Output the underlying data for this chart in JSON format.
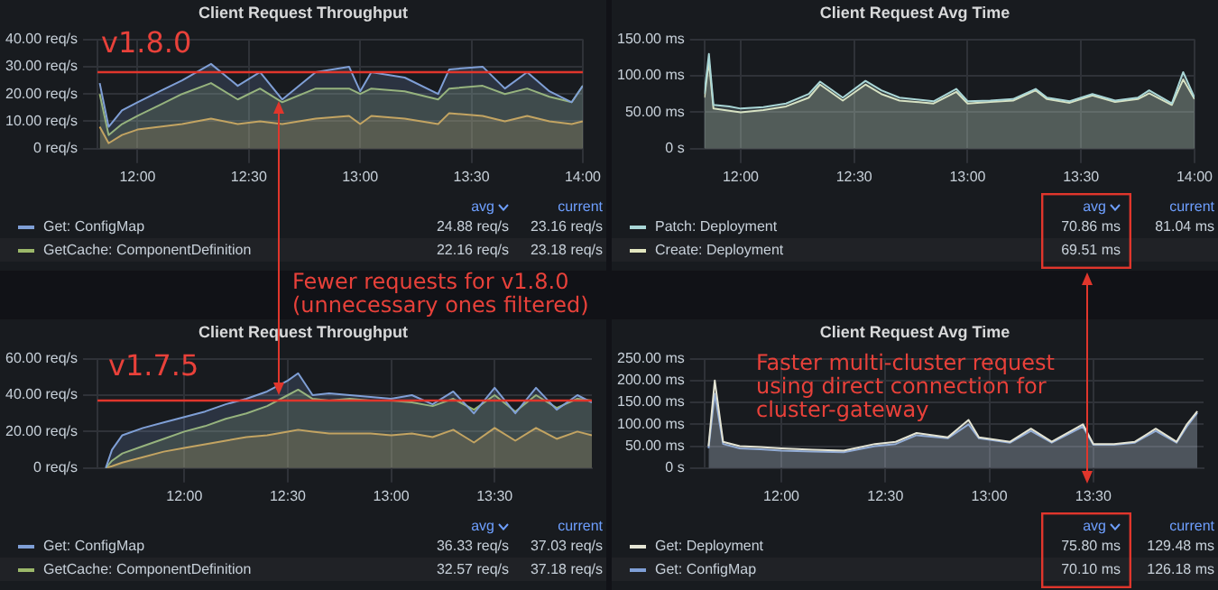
{
  "chart_data": [
    {
      "type": "area",
      "title": "Client Request Throughput",
      "x": [
        11.83,
        11.87,
        11.93,
        12.0,
        12.1,
        12.2,
        12.33,
        12.45,
        12.55,
        12.65,
        12.8,
        12.95,
        13.0,
        13.05,
        13.2,
        13.35,
        13.4,
        13.55,
        13.65,
        13.75,
        13.85,
        13.95,
        14.0
      ],
      "xlim": [
        11.82,
        14.0
      ],
      "xticks": [
        {
          "value": 12,
          "label": "12:00"
        },
        {
          "value": 12.5,
          "label": "12:30"
        },
        {
          "value": 13,
          "label": "13:00"
        },
        {
          "value": 13.5,
          "label": "13:30"
        },
        {
          "value": 14,
          "label": "14:00"
        }
      ],
      "ylim": [
        0,
        40
      ],
      "yticks": [
        {
          "value": 0,
          "label": "0 req/s"
        },
        {
          "value": 10,
          "label": "10.00 req/s"
        },
        {
          "value": 20,
          "label": "20.00 req/s"
        },
        {
          "value": 30,
          "label": "30.00 req/s"
        },
        {
          "value": 40,
          "label": "40.00 req/s"
        }
      ],
      "grid": true,
      "legend": "bottom",
      "series": [
        {
          "name": "Get: ConfigMap",
          "color": "#7f9fd6",
          "values": [
            24,
            8,
            14,
            17,
            21,
            25,
            31,
            23,
            28,
            18,
            28,
            30,
            21,
            28,
            26,
            20,
            29,
            30,
            22,
            28,
            21,
            17,
            23
          ]
        },
        {
          "name": "GetCache: ComponentDefinition",
          "color": "#9cb86a",
          "values": [
            20,
            5,
            9,
            12,
            16,
            20,
            24,
            18,
            22,
            17,
            22,
            22,
            20,
            22,
            21,
            18,
            22,
            23,
            20,
            22,
            19,
            17,
            23
          ]
        },
        {
          "color": "#e0a040",
          "values": [
            8,
            2,
            5,
            7,
            8,
            9,
            11,
            9,
            10,
            9,
            11,
            12,
            9,
            12,
            11,
            9,
            13,
            12,
            10,
            12,
            10,
            9,
            10
          ]
        }
      ],
      "ref_lines": [
        {
          "axis": "y",
          "value": 28,
          "color": "#e0362c"
        }
      ],
      "annotations": [
        "avg",
        "current",
        "24.88 req/s",
        "23.16 req/s",
        "22.16 req/s",
        "23.18 req/s",
        "v1.8.0"
      ]
    },
    {
      "type": "area",
      "title": "Client Request Avg Time",
      "x": [
        11.84,
        11.86,
        11.88,
        11.95,
        12.0,
        12.1,
        12.2,
        12.3,
        12.35,
        12.45,
        12.55,
        12.62,
        12.7,
        12.85,
        12.95,
        13.0,
        13.1,
        13.2,
        13.3,
        13.35,
        13.45,
        13.55,
        13.65,
        13.75,
        13.8,
        13.9,
        13.95,
        14.0
      ],
      "xlim": [
        11.84,
        14.0
      ],
      "xticks": [
        {
          "value": 12,
          "label": "12:00"
        },
        {
          "value": 12.5,
          "label": "12:30"
        },
        {
          "value": 13,
          "label": "13:00"
        },
        {
          "value": 13.5,
          "label": "13:30"
        },
        {
          "value": 14,
          "label": "14:00"
        }
      ],
      "ylim": [
        0,
        150
      ],
      "yticks": [
        {
          "value": 0,
          "label": "0 s"
        },
        {
          "value": 50,
          "label": "50.00 ms"
        },
        {
          "value": 100,
          "label": "100.00 ms"
        },
        {
          "value": 150,
          "label": "150.00 ms"
        }
      ],
      "grid": true,
      "legend": "bottom",
      "series": [
        {
          "name": "Patch: Deployment",
          "color": "#a9d6d6",
          "values": [
            75,
            130,
            60,
            58,
            55,
            57,
            62,
            75,
            92,
            70,
            93,
            80,
            70,
            65,
            82,
            65,
            66,
            68,
            82,
            70,
            65,
            75,
            66,
            70,
            80,
            62,
            105,
            70
          ]
        },
        {
          "name": "Create: Deployment",
          "color": "#e2e6bf",
          "values": [
            70,
            120,
            55,
            52,
            50,
            53,
            58,
            70,
            88,
            66,
            88,
            75,
            66,
            62,
            78,
            62,
            64,
            66,
            80,
            68,
            63,
            73,
            64,
            68,
            76,
            60,
            95,
            68
          ]
        }
      ],
      "annotations": [
        "avg",
        "current",
        "70.86 ms",
        "81.04 ms",
        "69.51 ms"
      ]
    },
    {
      "type": "area",
      "title": "Client Request Throughput",
      "x": [
        11.62,
        11.65,
        11.7,
        11.8,
        11.9,
        12.0,
        12.1,
        12.2,
        12.3,
        12.4,
        12.5,
        12.55,
        12.62,
        12.7,
        12.8,
        12.9,
        13.0,
        13.1,
        13.2,
        13.3,
        13.4,
        13.5,
        13.6,
        13.7,
        13.8,
        13.9,
        13.97
      ],
      "xlim": [
        11.58,
        13.97
      ],
      "xticks": [
        {
          "value": 12,
          "label": "12:00"
        },
        {
          "value": 12.5,
          "label": "12:30"
        },
        {
          "value": 13,
          "label": "13:00"
        },
        {
          "value": 13.5,
          "label": "13:30"
        }
      ],
      "ylim": [
        0,
        60
      ],
      "yticks": [
        {
          "value": 0,
          "label": "0 req/s"
        },
        {
          "value": 20,
          "label": "20.00 req/s"
        },
        {
          "value": 40,
          "label": "40.00 req/s"
        },
        {
          "value": 60,
          "label": "60.00 req/s"
        }
      ],
      "grid": true,
      "legend": "bottom",
      "series": [
        {
          "name": "Get: ConfigMap",
          "color": "#7f9fd6",
          "values": [
            0,
            10,
            18,
            22,
            25,
            28,
            31,
            35,
            38,
            42,
            48,
            52,
            40,
            41,
            40,
            39,
            38,
            40,
            35,
            42,
            30,
            44,
            30,
            44,
            32,
            40,
            36
          ]
        },
        {
          "name": "GetCache: ComponentDefinition",
          "color": "#9cb86a",
          "values": [
            0,
            4,
            8,
            12,
            16,
            20,
            23,
            27,
            30,
            34,
            40,
            43,
            38,
            37,
            38,
            37,
            37,
            36,
            34,
            38,
            32,
            40,
            31,
            40,
            33,
            38,
            37
          ]
        },
        {
          "color": "#e0a040",
          "values": [
            0,
            1,
            3,
            6,
            9,
            11,
            13,
            15,
            17,
            18,
            20,
            21,
            20,
            19,
            19,
            19,
            18,
            19,
            17,
            21,
            14,
            22,
            15,
            22,
            16,
            20,
            18
          ]
        }
      ],
      "ref_lines": [
        {
          "axis": "y",
          "value": 37,
          "color": "#e0362c"
        }
      ],
      "annotations": [
        "avg",
        "current",
        "36.33 req/s",
        "37.03 req/s",
        "32.57 req/s",
        "37.18 req/s",
        "v1.7.5",
        "Fewer requests for v1.8.0 (unnecessary ones filtered)"
      ]
    },
    {
      "type": "area",
      "title": "Client Request Avg Time",
      "x": [
        11.65,
        11.68,
        11.72,
        11.8,
        11.9,
        12.0,
        12.15,
        12.3,
        12.45,
        12.55,
        12.65,
        12.8,
        12.9,
        12.95,
        13.1,
        13.2,
        13.3,
        13.45,
        13.5,
        13.6,
        13.7,
        13.8,
        13.9,
        13.95,
        14.0
      ],
      "xlim": [
        11.63,
        14.03
      ],
      "xticks": [
        {
          "value": 12,
          "label": "12:00"
        },
        {
          "value": 12.5,
          "label": "12:30"
        },
        {
          "value": 13,
          "label": "13:00"
        },
        {
          "value": 13.5,
          "label": "13:30"
        }
      ],
      "ylim": [
        0,
        250
      ],
      "yticks": [
        {
          "value": 0,
          "label": "0 s"
        },
        {
          "value": 50,
          "label": "50.00 ms"
        },
        {
          "value": 100,
          "label": "100.00 ms"
        },
        {
          "value": 150,
          "label": "150.00 ms"
        },
        {
          "value": 200,
          "label": "200.00 ms"
        },
        {
          "value": 250,
          "label": "250.00 ms"
        }
      ],
      "grid": true,
      "legend": "bottom",
      "series": [
        {
          "name": "Get: Deployment",
          "color": "#e4e4d4",
          "values": [
            50,
            200,
            60,
            50,
            48,
            45,
            42,
            40,
            55,
            60,
            80,
            70,
            110,
            70,
            60,
            90,
            60,
            100,
            55,
            55,
            60,
            90,
            60,
            100,
            130
          ]
        },
        {
          "name": "Get: ConfigMap",
          "color": "#7f9fd6",
          "values": [
            45,
            170,
            55,
            45,
            43,
            40,
            38,
            36,
            50,
            55,
            75,
            68,
            100,
            68,
            58,
            85,
            58,
            95,
            53,
            53,
            58,
            85,
            58,
            95,
            126
          ]
        }
      ],
      "annotations": [
        "avg",
        "current",
        "75.80 ms",
        "129.48 ms",
        "70.10 ms",
        "126.18 ms",
        "Faster multi-cluster request using direct connection for cluster-gateway"
      ]
    }
  ]
}
